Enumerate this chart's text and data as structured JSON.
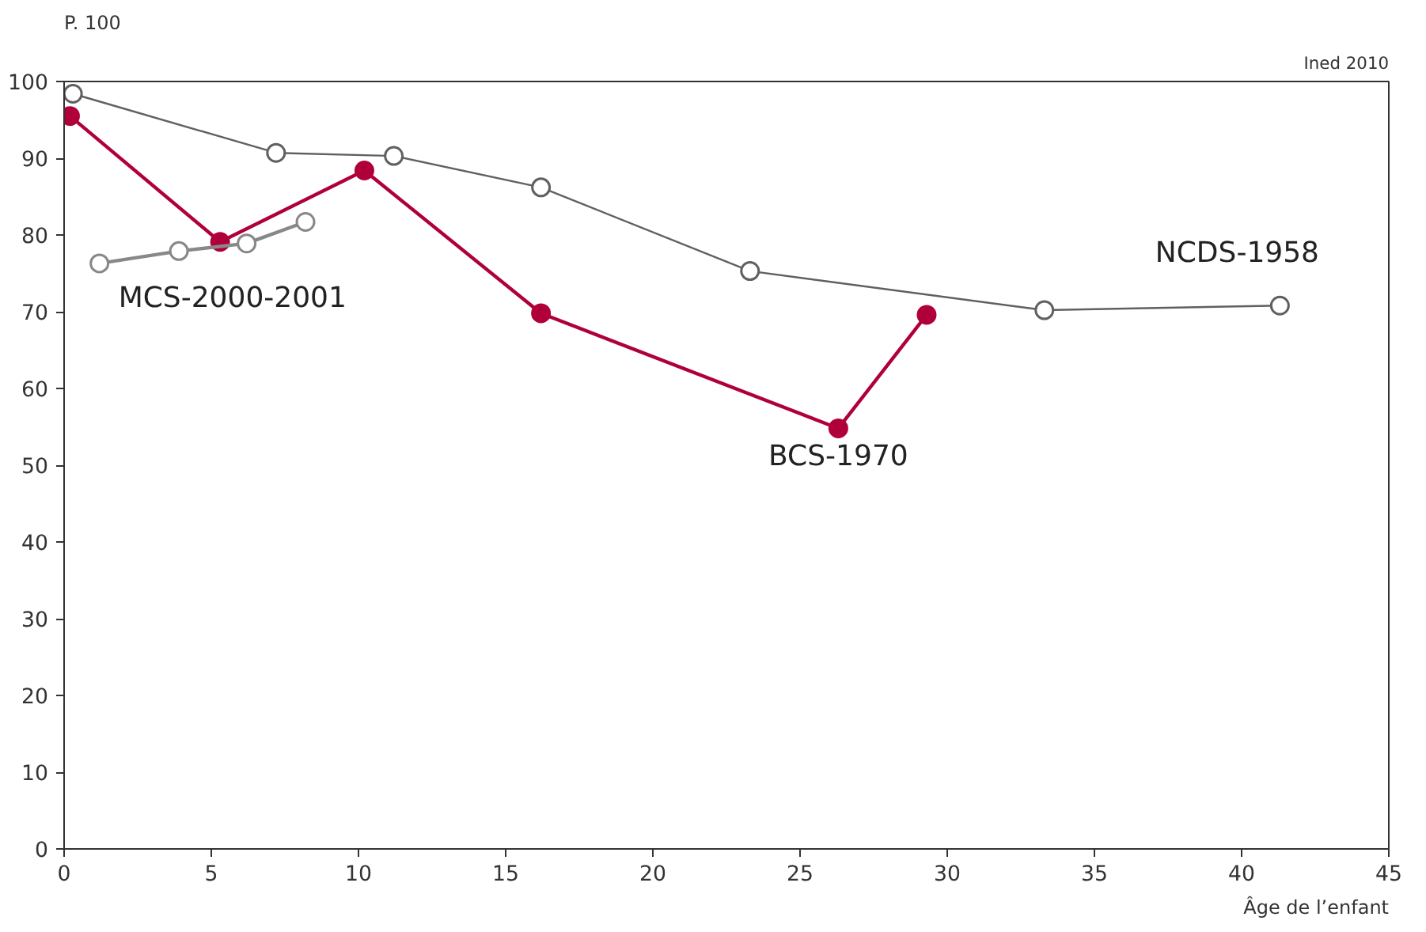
{
  "chart_data": {
    "type": "line",
    "ylabel": "P. 100",
    "xlabel": "Âge de l’enfant",
    "annotations": [
      "Ined 2010"
    ],
    "series": [
      {
        "name": "NCDS-1958",
        "color": "#606060",
        "x": [
          0.3,
          7.2,
          11.2,
          16.2,
          23.3,
          33.3,
          41.3
        ],
        "values": [
          98.4,
          90.7,
          90.3,
          86.2,
          75.3,
          70.2,
          70.8
        ]
      },
      {
        "name": "BCS-1970",
        "color": "#b0003a",
        "x": [
          0.2,
          5.3,
          10.2,
          16.2,
          26.3,
          29.3
        ],
        "values": [
          95.5,
          79.1,
          88.4,
          69.8,
          54.8,
          69.6
        ]
      },
      {
        "name": "MCS-2000-2001",
        "color": "#888888",
        "x": [
          1.2,
          3.9,
          6.2,
          8.2
        ],
        "values": [
          76.3,
          77.9,
          78.9,
          81.7
        ]
      }
    ],
    "marker": "circle",
    "line_style": "solid",
    "grid": false,
    "legend": false,
    "xlim": [
      0,
      45
    ],
    "ylim": [
      0,
      100
    ],
    "xticks": [
      0,
      5,
      10,
      15,
      20,
      25,
      30,
      35,
      40,
      45
    ],
    "yticks": [
      0,
      10,
      20,
      30,
      40,
      50,
      60,
      70,
      80,
      90,
      100
    ]
  }
}
